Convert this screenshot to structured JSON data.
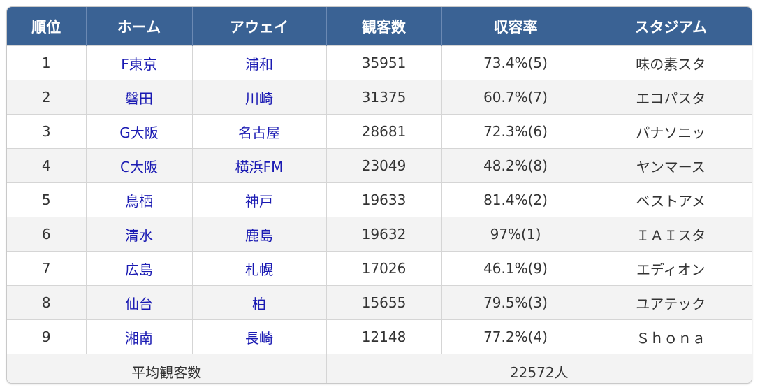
{
  "headers": {
    "rank": "順位",
    "home": "ホーム",
    "away": "アウェイ",
    "attendance": "観客数",
    "capacity_rate": "収容率",
    "stadium": "スタジアム"
  },
  "rows": [
    {
      "rank": "1",
      "home": "F東京",
      "away": "浦和",
      "attendance": "35951",
      "capacity_rate": "73.4%(5)",
      "stadium": "味の素スタ"
    },
    {
      "rank": "2",
      "home": "磐田",
      "away": "川崎",
      "attendance": "31375",
      "capacity_rate": "60.7%(7)",
      "stadium": "エコパスタ"
    },
    {
      "rank": "3",
      "home": "G大阪",
      "away": "名古屋",
      "attendance": "28681",
      "capacity_rate": "72.3%(6)",
      "stadium": "パナソニッ"
    },
    {
      "rank": "4",
      "home": "C大阪",
      "away": "横浜FM",
      "attendance": "23049",
      "capacity_rate": "48.2%(8)",
      "stadium": "ヤンマース"
    },
    {
      "rank": "5",
      "home": "鳥栖",
      "away": "神戸",
      "attendance": "19633",
      "capacity_rate": "81.4%(2)",
      "stadium": "ベストアメ"
    },
    {
      "rank": "6",
      "home": "清水",
      "away": "鹿島",
      "attendance": "19632",
      "capacity_rate": "97%(1)",
      "stadium": "ＩＡＩスタ"
    },
    {
      "rank": "7",
      "home": "広島",
      "away": "札幌",
      "attendance": "17026",
      "capacity_rate": "46.1%(9)",
      "stadium": "エディオン"
    },
    {
      "rank": "8",
      "home": "仙台",
      "away": "柏",
      "attendance": "15655",
      "capacity_rate": "79.5%(3)",
      "stadium": "ユアテック"
    },
    {
      "rank": "9",
      "home": "湘南",
      "away": "長崎",
      "attendance": "12148",
      "capacity_rate": "77.2%(4)",
      "stadium": "Ｓｈｏｎａ"
    }
  ],
  "footer": {
    "label": "平均観客数",
    "value": "22572人"
  },
  "colors": {
    "header_bg": "#3a6294",
    "header_text": "#ffffff",
    "team_link": "#1b1bb3",
    "stripe": "#f3f3f3"
  }
}
